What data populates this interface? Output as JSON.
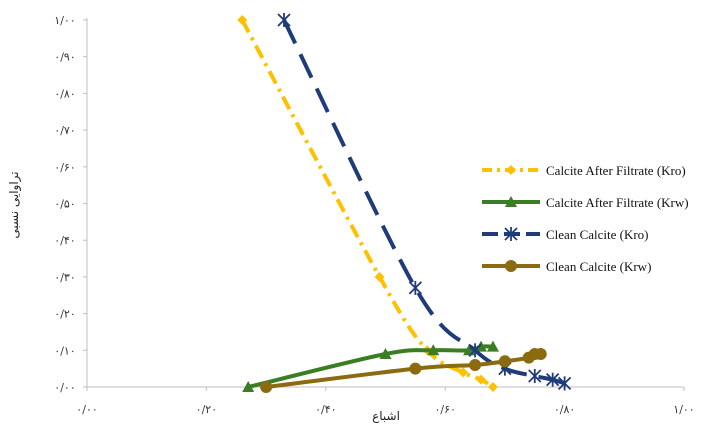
{
  "chart_data": {
    "type": "scatter",
    "xlabel": "اشباع",
    "ylabel": "تراوایی نسبی",
    "xlim": [
      0,
      1
    ],
    "ylim": [
      0,
      1
    ],
    "x_ticks": [
      0,
      0.2,
      0.4,
      0.6,
      0.8,
      1.0
    ],
    "x_tick_labels": [
      "۰/۰۰",
      "۰/۲۰",
      "۰/۴۰",
      "۰/۶۰",
      "۰/۸۰",
      "۱/۰۰"
    ],
    "y_ticks": [
      0,
      0.1,
      0.2,
      0.3,
      0.4,
      0.5,
      0.6,
      0.7,
      0.8,
      0.9,
      1.0
    ],
    "y_tick_labels": [
      "۰/۰۰",
      "۰/۱۰",
      "۰/۲۰",
      "۰/۳۰",
      "۰/۴۰",
      "۰/۵۰",
      "۰/۶۰",
      "۰/۷۰",
      "۰/۸۰",
      "۰/۹۰",
      "۱/۰۰"
    ],
    "grid": false,
    "legend_position": "right",
    "series": [
      {
        "name": "Calcite After Filtrate (Kro)",
        "color": "#FFC000",
        "dash": "dashdot",
        "marker": "diamond",
        "points": [
          [
            0.26,
            1.0
          ],
          [
            0.49,
            0.3
          ],
          [
            0.57,
            0.1
          ],
          [
            0.63,
            0.04
          ],
          [
            0.66,
            0.02
          ],
          [
            0.68,
            0.0
          ]
        ]
      },
      {
        "name": "Calcite After Filtrate (Krw)",
        "color": "#3A7D22",
        "dash": "solid",
        "marker": "triangle",
        "points": [
          [
            0.27,
            0.0
          ],
          [
            0.5,
            0.09
          ],
          [
            0.58,
            0.1
          ],
          [
            0.64,
            0.1
          ],
          [
            0.66,
            0.11
          ],
          [
            0.68,
            0.11
          ]
        ]
      },
      {
        "name": "Clean Calcite (Kro)",
        "color": "#1F3B7A",
        "dash": "longdash",
        "marker": "asterisk",
        "points": [
          [
            0.33,
            1.0
          ],
          [
            0.55,
            0.27
          ],
          [
            0.65,
            0.1
          ],
          [
            0.7,
            0.05
          ],
          [
            0.75,
            0.03
          ],
          [
            0.78,
            0.02
          ],
          [
            0.8,
            0.01
          ]
        ]
      },
      {
        "name": "Clean Calcite (Krw)",
        "color": "#8B6A10",
        "dash": "solid",
        "marker": "circle",
        "points": [
          [
            0.3,
            0.0
          ],
          [
            0.55,
            0.05
          ],
          [
            0.65,
            0.06
          ],
          [
            0.7,
            0.07
          ],
          [
            0.74,
            0.08
          ],
          [
            0.75,
            0.09
          ],
          [
            0.76,
            0.09
          ]
        ]
      }
    ]
  }
}
